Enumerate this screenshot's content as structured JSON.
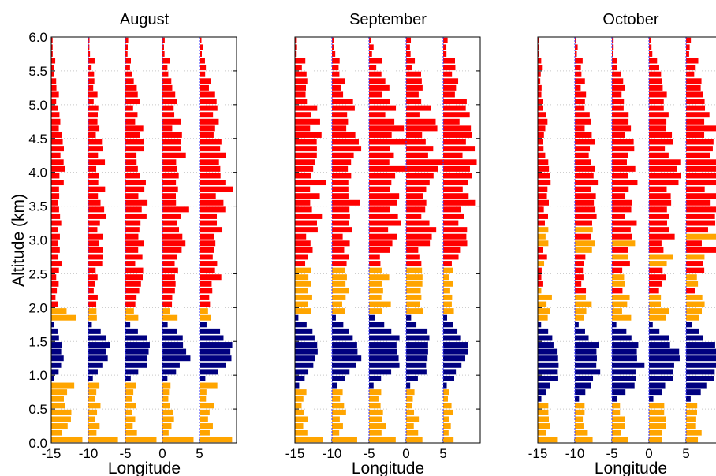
{
  "figure": {
    "ylabel": "Altitude (km)",
    "xlabel": "Longitude"
  },
  "colors": {
    "low_level": "#000080",
    "mid_level": "#FFA500",
    "high_level": "#FF0000",
    "baseline": "#3A3AFF",
    "grid": "#C8C8C8"
  },
  "chart_data": [
    {
      "type": "bar",
      "title": "August",
      "orientation": "horizontal-profiles",
      "xlim": [
        -15,
        10
      ],
      "ylim": [
        0,
        6
      ],
      "x_ticks": [
        "-15",
        "-10",
        "-5",
        "0",
        "5"
      ],
      "y_ticks": [
        "0.0",
        "0.5",
        "1.0",
        "1.5",
        "2.0",
        "2.5",
        "3.0",
        "3.5",
        "4.0",
        "4.5",
        "5.0",
        "5.5",
        "6.0"
      ],
      "profile_baselines_lon": [
        -15,
        -10,
        -5,
        0,
        5
      ],
      "altitude_bins_km": [
        0.05,
        1.85,
        4.1,
        5.95
      ],
      "layers": [
        {
          "name": "low_level",
          "from_km": 0.9,
          "to_km": 1.8
        },
        {
          "name": "mid_level",
          "from_km": 0.0,
          "to_km": 2.0
        },
        {
          "name": "high_level",
          "from_km": 2.0,
          "to_km": 6.0
        }
      ],
      "profiles": [
        {
          "lon": -15,
          "peak_low": 1.6,
          "peak_mid": 4.0,
          "peak_high": 1.6,
          "near_surface": 4.2
        },
        {
          "lon": -10,
          "peak_low": 2.8,
          "peak_mid": 2.2,
          "peak_high": 2.0,
          "near_surface": 4.0
        },
        {
          "lon": -5,
          "peak_low": 3.6,
          "peak_mid": 2.4,
          "peak_high": 2.8,
          "near_surface": 4.2
        },
        {
          "lon": 0,
          "peak_low": 3.6,
          "peak_mid": 2.2,
          "peak_high": 3.0,
          "near_surface": 4.2
        },
        {
          "lon": 5,
          "peak_low": 4.6,
          "peak_mid": 2.6,
          "peak_high": 3.8,
          "near_surface": 4.4
        }
      ]
    },
    {
      "type": "bar",
      "title": "September",
      "orientation": "horizontal-profiles",
      "xlim": [
        -15,
        10
      ],
      "ylim": [
        0,
        6
      ],
      "x_ticks": [
        "-15",
        "-10",
        "-5",
        "0",
        "5"
      ],
      "profile_baselines_lon": [
        -15,
        -10,
        -5,
        0,
        5
      ],
      "layers": [
        {
          "name": "low_level",
          "from_km": 0.8,
          "to_km": 1.9
        },
        {
          "name": "mid_level",
          "from_km": 0.0,
          "to_km": 2.6
        },
        {
          "name": "high_level",
          "from_km": 2.6,
          "to_km": 6.0
        }
      ],
      "profiles": [
        {
          "lon": -15,
          "peak_low": 3.0,
          "peak_mid": 2.6,
          "peak_high": 3.4,
          "near_surface": 3.8
        },
        {
          "lon": -10,
          "peak_low": 3.6,
          "peak_mid": 2.6,
          "peak_high": 3.6,
          "near_surface": 3.4
        },
        {
          "lon": -5,
          "peak_low": 4.2,
          "peak_mid": 3.2,
          "peak_high": 4.4,
          "near_surface": 3.6
        },
        {
          "lon": 0,
          "peak_low": 3.6,
          "peak_mid": 2.4,
          "peak_high": 4.2,
          "near_surface": 2.2
        },
        {
          "lon": 5,
          "peak_low": 3.0,
          "peak_mid": 1.8,
          "peak_high": 4.0,
          "near_surface": 1.4
        }
      ]
    },
    {
      "type": "bar",
      "title": "October",
      "orientation": "horizontal-profiles",
      "xlim": [
        -15,
        10
      ],
      "ylim": [
        0,
        6
      ],
      "x_ticks": [
        "-15",
        "-10",
        "-5",
        "0",
        "5"
      ],
      "profile_baselines_lon": [
        -15,
        -10,
        -5,
        0,
        5
      ],
      "layers": [
        {
          "name": "low_level",
          "from_km": 0.6,
          "to_km": 1.8
        },
        {
          "name": "mid_level",
          "from_km": 0.0,
          "to_km": 3.2
        },
        {
          "name": "high_level",
          "from_km": 2.2,
          "to_km": 6.0
        }
      ],
      "profiles": [
        {
          "lon": -15,
          "peak_low": 2.8,
          "peak_mid": 2.2,
          "peak_high": 1.4,
          "near_surface": 2.6
        },
        {
          "lon": -10,
          "peak_low": 3.4,
          "peak_mid": 2.6,
          "peak_high": 2.6,
          "near_surface": 2.4
        },
        {
          "lon": -5,
          "peak_low": 4.2,
          "peak_mid": 3.0,
          "peak_high": 3.0,
          "near_surface": 2.2
        },
        {
          "lon": 0,
          "peak_low": 3.8,
          "peak_mid": 3.2,
          "peak_high": 3.6,
          "near_surface": 1.8
        },
        {
          "lon": 5,
          "peak_low": 4.2,
          "peak_mid": 3.0,
          "peak_high": 4.4,
          "near_surface": 1.6
        }
      ]
    }
  ]
}
